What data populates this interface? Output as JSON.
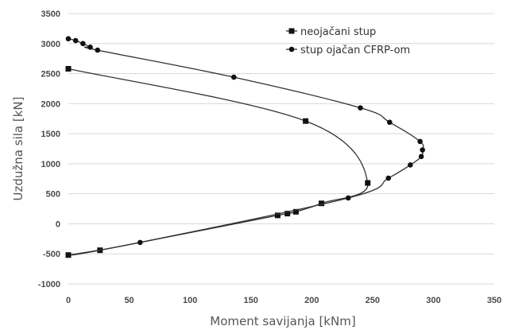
{
  "chart_data": {
    "type": "line",
    "xlabel": "Moment savijanja [kNm]",
    "ylabel": "Uzdužna sila [kN]",
    "xlim": [
      0,
      350
    ],
    "ylim": [
      -1000,
      3500
    ],
    "xticks": [
      "0",
      "50",
      "100",
      "150",
      "200",
      "250",
      "300",
      "350"
    ],
    "yticks": [
      "-1000",
      "-500",
      "0",
      "500",
      "1000",
      "1500",
      "2000",
      "2500",
      "3000",
      "3500"
    ],
    "grid": "horizontal",
    "legend_position": "top-right",
    "series": [
      {
        "name": "neojačani stup",
        "marker": "square",
        "color": "#111111",
        "points": [
          [
            0,
            2580
          ],
          [
            195,
            1710
          ],
          [
            246,
            680
          ],
          [
            208,
            340
          ],
          [
            187,
            200
          ],
          [
            180,
            170
          ],
          [
            172,
            140
          ],
          [
            26,
            -440
          ],
          [
            0,
            -520
          ]
        ]
      },
      {
        "name": "stup ojačan CFRP-om",
        "marker": "circle",
        "color": "#111111",
        "points": [
          [
            0,
            3080
          ],
          [
            6,
            3050
          ],
          [
            12,
            3000
          ],
          [
            18,
            2940
          ],
          [
            24,
            2890
          ],
          [
            136,
            2440
          ],
          [
            240,
            1930
          ],
          [
            264,
            1690
          ],
          [
            289,
            1370
          ],
          [
            291,
            1230
          ],
          [
            290,
            1120
          ],
          [
            281,
            980
          ],
          [
            263,
            760
          ],
          [
            230,
            430
          ],
          [
            59,
            -310
          ],
          [
            0,
            -520
          ]
        ]
      }
    ]
  }
}
